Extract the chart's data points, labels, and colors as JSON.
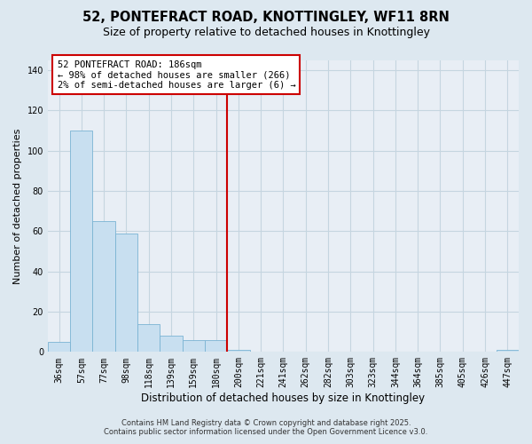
{
  "title": "52, PONTEFRACT ROAD, KNOTTINGLEY, WF11 8RN",
  "subtitle": "Size of property relative to detached houses in Knottingley",
  "xlabel": "Distribution of detached houses by size in Knottingley",
  "ylabel": "Number of detached properties",
  "bar_labels": [
    "36sqm",
    "57sqm",
    "77sqm",
    "98sqm",
    "118sqm",
    "139sqm",
    "159sqm",
    "180sqm",
    "200sqm",
    "221sqm",
    "241sqm",
    "262sqm",
    "282sqm",
    "303sqm",
    "323sqm",
    "344sqm",
    "364sqm",
    "385sqm",
    "405sqm",
    "426sqm",
    "447sqm"
  ],
  "bar_values": [
    5,
    110,
    65,
    59,
    14,
    8,
    6,
    6,
    1,
    0,
    0,
    0,
    0,
    0,
    0,
    0,
    0,
    0,
    0,
    0,
    1
  ],
  "bar_color": "#c8dff0",
  "bar_edge_color": "#7ab3d3",
  "vline_x": 7.5,
  "vline_color": "#cc0000",
  "annotation_title": "52 PONTEFRACT ROAD: 186sqm",
  "annotation_line1": "← 98% of detached houses are smaller (266)",
  "annotation_line2": "2% of semi-detached houses are larger (6) →",
  "annotation_box_color": "#ffffff",
  "annotation_box_edge_color": "#cc0000",
  "footer1": "Contains HM Land Registry data © Crown copyright and database right 2025.",
  "footer2": "Contains public sector information licensed under the Open Government Licence v3.0.",
  "ylim": [
    0,
    145
  ],
  "background_color": "#dde8f0",
  "plot_bg_color": "#e8eef5",
  "grid_color": "#c5d5e0",
  "title_fontsize": 10.5,
  "subtitle_fontsize": 9,
  "xlabel_fontsize": 8.5,
  "ylabel_fontsize": 8,
  "tick_fontsize": 7,
  "footer_fontsize": 6,
  "ann_fontsize": 7.5
}
